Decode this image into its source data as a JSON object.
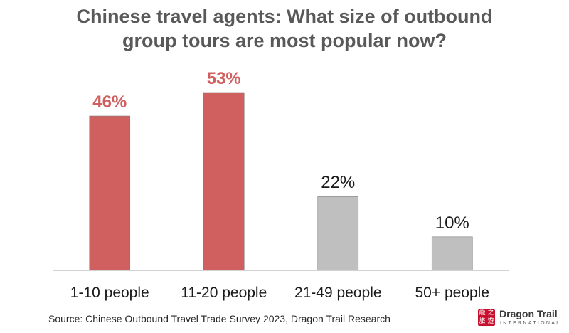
{
  "title_lines": [
    "Chinese travel agents: What size of outbound",
    "group tours are most popular now?"
  ],
  "source": "Source: Chinese Outbound Travel Trade Survey 2023, Dragon Trail Research",
  "logo": {
    "name": "Dragon Trail",
    "sub": "INTERNATIONAL",
    "mark_glyphs": [
      "龍",
      "之",
      "旅",
      "遊"
    ]
  },
  "colors": {
    "highlight": "#d06060",
    "neutral": "#bfbfbf",
    "highlight_text": "#d06060",
    "neutral_text": "#1a1a1a",
    "axis": "#a6a6a6"
  },
  "chart_data": {
    "type": "bar",
    "categories": [
      "1-10 people",
      "11-20 people",
      "21-49 people",
      "50+ people"
    ],
    "values": [
      46,
      53,
      22,
      10
    ],
    "value_labels": [
      "46%",
      "53%",
      "22%",
      "10%"
    ],
    "highlighted": [
      true,
      true,
      false,
      false
    ],
    "ylim": [
      0,
      53
    ],
    "grid": false,
    "legend": "none"
  }
}
